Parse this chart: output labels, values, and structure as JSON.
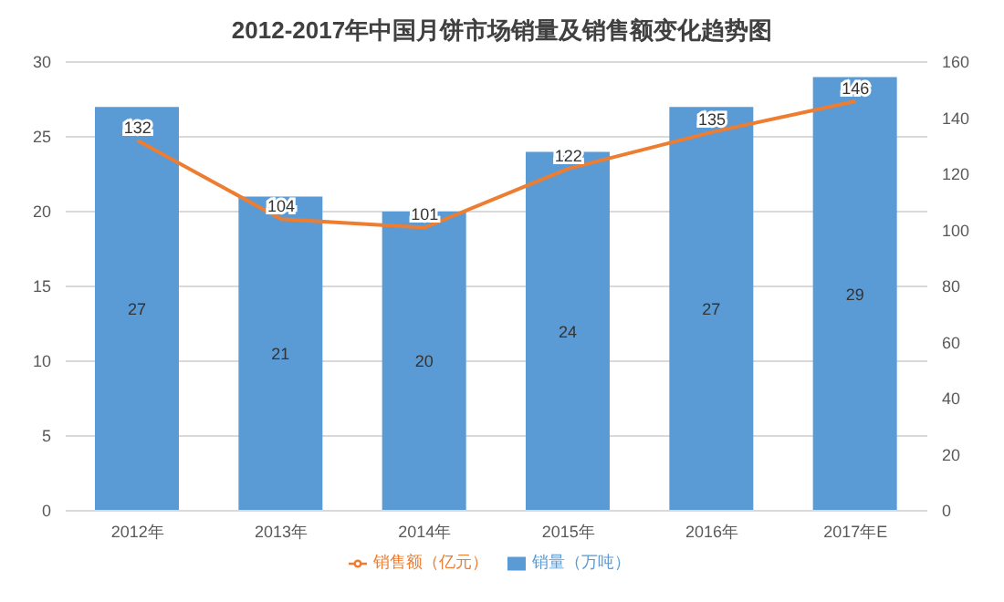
{
  "chart_data": {
    "type": "bar",
    "title": "2012-2017年中国月饼市场销量及销售额变化趋势图",
    "categories": [
      "2012年",
      "2013年",
      "2014年",
      "2015年",
      "2016年",
      "2017年E"
    ],
    "series": [
      {
        "name": "销量（万吨）",
        "color": "#5b9bd5",
        "values": [
          27,
          21,
          20,
          24,
          27,
          29
        ]
      },
      {
        "name": "销售额（亿元）",
        "type": "line",
        "axis": "y2",
        "color": "#ed7d31",
        "values": [
          132,
          104,
          101,
          122,
          135,
          146
        ]
      }
    ],
    "ylim": [
      0,
      30
    ],
    "yticks": [
      0,
      5,
      10,
      15,
      20,
      25,
      30
    ],
    "y2lim": [
      0,
      160
    ],
    "y2ticks": [
      0,
      20,
      40,
      60,
      80,
      100,
      120,
      140,
      160
    ],
    "grid": "y",
    "legend": "bottom",
    "data_labels": true,
    "marker": "none"
  }
}
